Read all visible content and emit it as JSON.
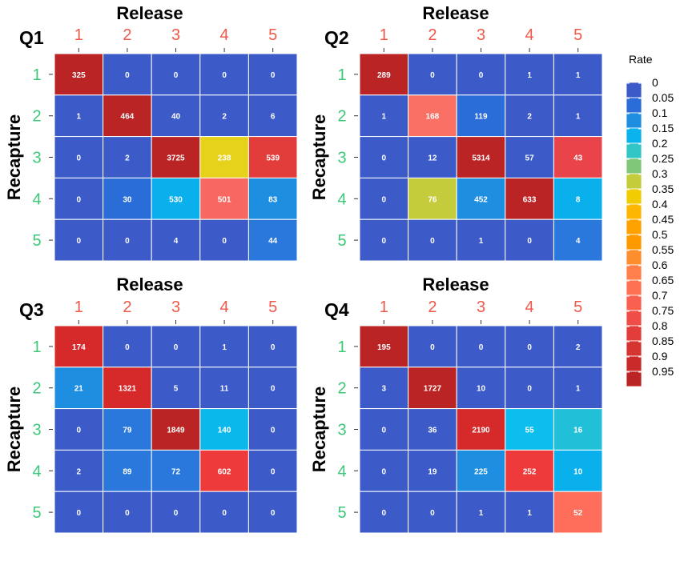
{
  "colors": {
    "release_tick": "#F0584A",
    "recapture_tick": "#3CC878",
    "grid_line": "#ffffff",
    "cell_text": "#ffffff"
  },
  "legend": {
    "title": "Rate",
    "breaks": [
      "0",
      "0.05",
      "0.1",
      "0.15",
      "0.2",
      "0.25",
      "0.3",
      "0.35",
      "0.4",
      "0.45",
      "0.5",
      "0.55",
      "0.6",
      "0.65",
      "0.7",
      "0.75",
      "0.8",
      "0.85",
      "0.9",
      "0.95"
    ],
    "colors": [
      "#3D5BC8",
      "#2B6DD8",
      "#1E8EE0",
      "#0BB3EC",
      "#33C6C6",
      "#80C878",
      "#C4CC3C",
      "#F0CC00",
      "#FDB700",
      "#FDA200",
      "#FD9A00",
      "#FD8E2E",
      "#FE7F4A",
      "#FE7152",
      "#F86050",
      "#EE4D48",
      "#E23D3A",
      "#D63431",
      "#CA2A2A",
      "#BB2424"
    ]
  },
  "chart_data": [
    {
      "type": "heatmap",
      "title": "Q1",
      "xlabel": "Release",
      "ylabel": "Recapture",
      "x_categories": [
        "1",
        "2",
        "3",
        "4",
        "5"
      ],
      "y_categories": [
        "1",
        "2",
        "3",
        "4",
        "5"
      ],
      "values": [
        [
          325,
          0,
          0,
          0,
          0
        ],
        [
          1,
          464,
          40,
          2,
          6
        ],
        [
          0,
          2,
          3725,
          238,
          539
        ],
        [
          0,
          30,
          530,
          501,
          83
        ],
        [
          0,
          0,
          4,
          0,
          44
        ]
      ],
      "fill": [
        [
          "#BB2424",
          "#3D5BC8",
          "#3D5BC8",
          "#3D5BC8",
          "#3D5BC8"
        ],
        [
          "#3D5BC8",
          "#BB2424",
          "#3D5BC8",
          "#3D5BC8",
          "#3D5BC8"
        ],
        [
          "#3D5BC8",
          "#3D5BC8",
          "#BB2424",
          "#E6D21A",
          "#E23D3A"
        ],
        [
          "#3D5BC8",
          "#2B6DD8",
          "#0AB0EC",
          "#F86860",
          "#1E8EE0"
        ],
        [
          "#3D5BC8",
          "#3D5BC8",
          "#3D5BC8",
          "#3D5BC8",
          "#2B78DC"
        ]
      ]
    },
    {
      "type": "heatmap",
      "title": "Q2",
      "xlabel": "Release",
      "ylabel": "Recapture",
      "x_categories": [
        "1",
        "2",
        "3",
        "4",
        "5"
      ],
      "y_categories": [
        "1",
        "2",
        "3",
        "4",
        "5"
      ],
      "values": [
        [
          289,
          0,
          0,
          1,
          1
        ],
        [
          1,
          168,
          119,
          2,
          1
        ],
        [
          0,
          12,
          5314,
          57,
          43
        ],
        [
          0,
          76,
          452,
          633,
          8
        ],
        [
          0,
          0,
          1,
          0,
          4
        ]
      ],
      "fill": [
        [
          "#BB2424",
          "#3D5BC8",
          "#3D5BC8",
          "#3D5BC8",
          "#3D5BC8"
        ],
        [
          "#3D5BC8",
          "#FA7064",
          "#2B6DD8",
          "#3D5BC8",
          "#3D5BC8"
        ],
        [
          "#3D5BC8",
          "#3D5BC8",
          "#BB2424",
          "#3D5BC8",
          "#E8444A"
        ],
        [
          "#3D5BC8",
          "#C4CC3C",
          "#1E8EE0",
          "#BB2424",
          "#0AB0EC"
        ],
        [
          "#3D5BC8",
          "#3D5BC8",
          "#3D5BC8",
          "#3D5BC8",
          "#2B78DC"
        ]
      ]
    },
    {
      "type": "heatmap",
      "title": "Q3",
      "xlabel": "Release",
      "ylabel": "Recapture",
      "x_categories": [
        "1",
        "2",
        "3",
        "4",
        "5"
      ],
      "y_categories": [
        "1",
        "2",
        "3",
        "4",
        "5"
      ],
      "values": [
        [
          174,
          0,
          0,
          1,
          0
        ],
        [
          21,
          1321,
          5,
          11,
          0
        ],
        [
          0,
          79,
          1849,
          140,
          0
        ],
        [
          2,
          89,
          72,
          602,
          0
        ],
        [
          0,
          0,
          0,
          0,
          0
        ]
      ],
      "fill": [
        [
          "#D62A2A",
          "#3D5BC8",
          "#3D5BC8",
          "#3D5BC8",
          "#3D5BC8"
        ],
        [
          "#1E8EE0",
          "#D62A2A",
          "#3D5BC8",
          "#3D5BC8",
          "#3D5BC8"
        ],
        [
          "#3D5BC8",
          "#2B78DC",
          "#BB2424",
          "#0AB8EC",
          "#3D5BC8"
        ],
        [
          "#3D5BC8",
          "#2B78DC",
          "#2B78DC",
          "#EE3A3A",
          "#3D5BC8"
        ],
        [
          "#3D5BC8",
          "#3D5BC8",
          "#3D5BC8",
          "#3D5BC8",
          "#3D5BC8"
        ]
      ]
    },
    {
      "type": "heatmap",
      "title": "Q4",
      "xlabel": "Release",
      "ylabel": "Recapture",
      "x_categories": [
        "1",
        "2",
        "3",
        "4",
        "5"
      ],
      "y_categories": [
        "1",
        "2",
        "3",
        "4",
        "5"
      ],
      "values": [
        [
          195,
          0,
          0,
          0,
          2
        ],
        [
          3,
          1727,
          10,
          0,
          1
        ],
        [
          0,
          36,
          2190,
          55,
          16
        ],
        [
          0,
          19,
          225,
          252,
          10
        ],
        [
          0,
          0,
          1,
          1,
          52
        ]
      ],
      "fill": [
        [
          "#BB2424",
          "#3D5BC8",
          "#3D5BC8",
          "#3D5BC8",
          "#3D5BC8"
        ],
        [
          "#3D5BC8",
          "#BB2424",
          "#3D5BC8",
          "#3D5BC8",
          "#3D5BC8"
        ],
        [
          "#3D5BC8",
          "#3D5BC8",
          "#D62A2A",
          "#0BBEEE",
          "#22C0D8"
        ],
        [
          "#3D5BC8",
          "#3D5BC8",
          "#1E8EE0",
          "#EE3A3A",
          "#0AB0EC"
        ],
        [
          "#3D5BC8",
          "#3D5BC8",
          "#3D5BC8",
          "#3D5BC8",
          "#FE6E5A"
        ]
      ]
    }
  ]
}
